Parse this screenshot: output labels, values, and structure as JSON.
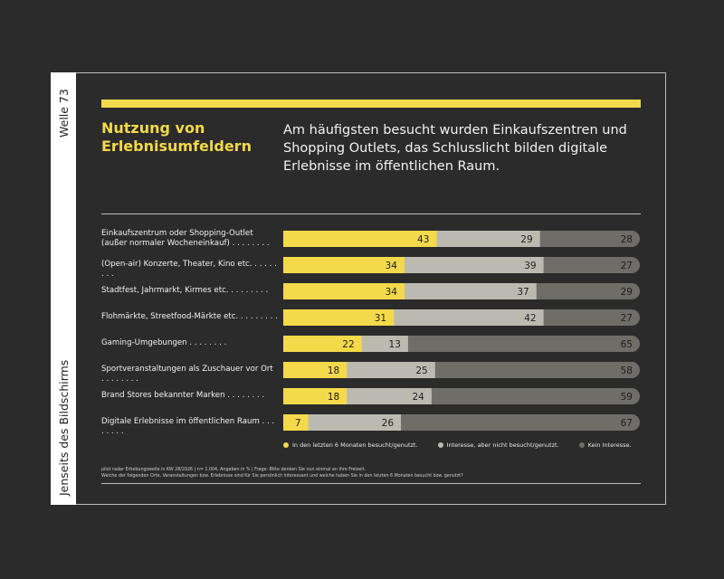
{
  "side": {
    "wave": "Welle 73",
    "topic": "Jenseits des Bildschirms"
  },
  "header": {
    "title": "Nutzung von Erlebnisumfeldern",
    "headline": "Am häufigsten besucht wurden Einkaufszentren und Shopping Outlets, das Schlusslicht bilden digitale Erlebnisse im öffentlichen Raum."
  },
  "labels": [
    "Einkaufszentrum oder Shopping-Outlet (außer normaler Wocheneinkauf)",
    "(Open-air) Konzerte, Theater, Kino etc.",
    "Stadtfest, Jahrmarkt, Kirmes etc.",
    "Flohmärkte, Streetfood-Märkte etc.",
    "Gaming-Umgebungen",
    "Sportveranstaltungen als Zuschauer vor Ort",
    "Brand Stores bekannter Marken",
    "Digitale Erlebnisse im öffentlichen Raum"
  ],
  "legend": [
    "In den letzten 6 Monaten besucht/genutzt.",
    "Interesse, aber nicht besucht/genutzt.",
    "Kein Interesse."
  ],
  "notes": [
    "pilot radar Erhebungswelle in KW 28/2026 | n= 1.004, Angaben in % | Frage: Bitte denken Sie nun einmal an Ihre Freizeit.",
    "Welche der folgenden Orte, Veranstaltungen bzw. Erlebnisse sind für Sie persönlich interessant und welche haben Sie in den letzten 6 Monaten besucht bzw. genutzt?"
  ],
  "colors": {
    "yellow": "#f4d94a",
    "light_gray": "#bcbab0",
    "dark_gray": "#6f6d68",
    "background": "#2b2b2b"
  },
  "chart_data": {
    "type": "bar",
    "orientation": "horizontal",
    "stacked": true,
    "categories": [
      "Einkaufszentrum oder Shopping-Outlet (außer normaler Wocheneinkauf)",
      "(Open-air) Konzerte, Theater, Kino etc.",
      "Stadtfest, Jahrmarkt, Kirmes etc.",
      "Flohmärkte, Streetfood-Märkte etc.",
      "Gaming-Umgebungen",
      "Sportveranstaltungen als Zuschauer vor Ort",
      "Brand Stores bekannter Marken",
      "Digitale Erlebnisse im öffentlichen Raum"
    ],
    "series": [
      {
        "name": "In den letzten 6 Monaten besucht/genutzt.",
        "values": [
          43,
          34,
          34,
          31,
          22,
          18,
          18,
          7
        ]
      },
      {
        "name": "Interesse, aber nicht besucht/genutzt.",
        "values": [
          29,
          39,
          37,
          42,
          13,
          25,
          24,
          26
        ]
      },
      {
        "name": "Kein Interesse.",
        "values": [
          28,
          27,
          29,
          27,
          65,
          58,
          59,
          67
        ]
      }
    ],
    "xlim": [
      0,
      100
    ],
    "legend": "bottom",
    "grid": false
  }
}
